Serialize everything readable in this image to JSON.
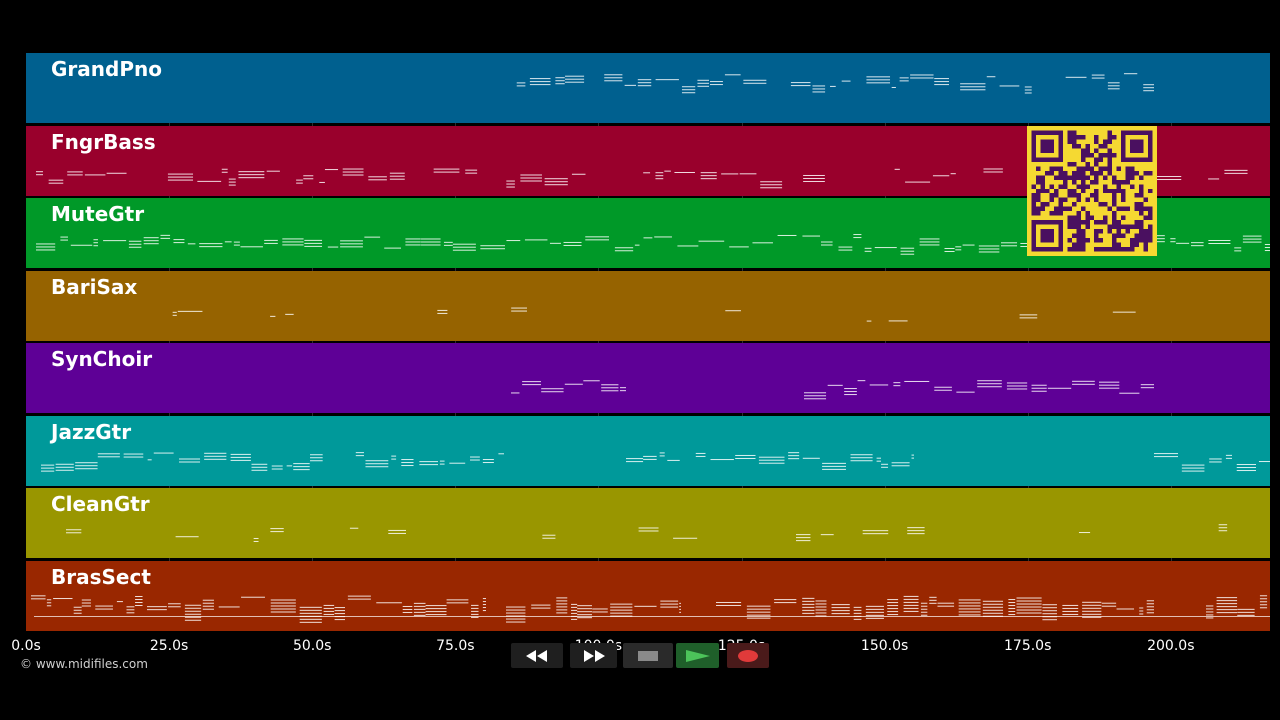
{
  "window": {
    "title": ""
  },
  "tracks": [
    {
      "name": "GrandPno",
      "color": "#00608f"
    },
    {
      "name": "FngrBass",
      "color": "#99002c"
    },
    {
      "name": "MuteGtr",
      "color": "#009928"
    },
    {
      "name": "BariSax",
      "color": "#966300"
    },
    {
      "name": "SynChoir",
      "color": "#5e0096"
    },
    {
      "name": "JazzGtr",
      "color": "#00999a"
    },
    {
      "name": "CleanGtr",
      "color": "#999600"
    },
    {
      "name": "BrasSect",
      "color": "#992700"
    }
  ],
  "timeline": {
    "ticks": [
      "0.0s",
      "25.0s",
      "50.0s",
      "75.0s",
      "100.0s",
      "125.0s",
      "150.0s",
      "175.0s",
      "200.0s"
    ]
  },
  "footer": {
    "copyright": "© www.midifiles.com"
  },
  "transport": {
    "buttons": [
      {
        "name": "rewind-button",
        "icon": "rewind-icon",
        "bg": "#1f1f1f",
        "fg": "#ffffff"
      },
      {
        "name": "fast-forward-button",
        "icon": "fast-forward-icon",
        "bg": "#1f1f1f",
        "fg": "#ffffff"
      },
      {
        "name": "stop-button",
        "icon": "stop-icon",
        "bg": "#2a2a2a",
        "fg": "#8a8a8a"
      },
      {
        "name": "play-button",
        "icon": "play-icon",
        "bg": "#1f5f2a",
        "fg": "#4cc35a"
      },
      {
        "name": "record-button",
        "icon": "record-icon",
        "bg": "#4a1a1a",
        "fg": "#e03a3a"
      }
    ]
  },
  "qr_code": {
    "bg": "#f5d932",
    "fg": "#4a1060"
  }
}
